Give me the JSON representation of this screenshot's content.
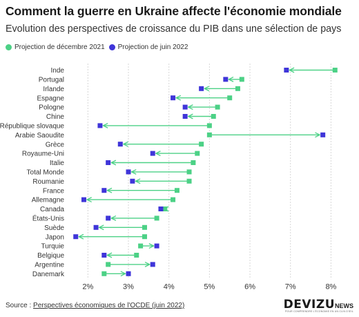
{
  "title": "Comment la guerre en Ukraine affecte l'économie mondiale",
  "subtitle": "Evolution des perspectives de croissance du PIB dans une sélection de pays",
  "legend": [
    {
      "label": "Projection de décembre 2021",
      "color": "#4cd186"
    },
    {
      "label": "Projection de juin 2022",
      "color": "#3f35d9"
    }
  ],
  "source_prefix": "Source : ",
  "source_link": "Perspectives économiques de l'OCDE (juin 2022)",
  "logo": {
    "main": "DEVIZU",
    "suffix": "NEWS",
    "tagline": "POUR COMPRENDRE L'ÉCONOMIE EN UN CLIN D'ŒIL"
  },
  "colors": {
    "dec": "#4cd186",
    "jun": "#3f35d9",
    "grid": "#d6d6d6",
    "arrow": "#4cd186"
  },
  "chart_data": {
    "type": "dumbbell",
    "xlim": [
      1.5,
      8.3
    ],
    "x_ticks": [
      2,
      3,
      4,
      5,
      6,
      7,
      8
    ],
    "x_tick_labels": [
      "2%",
      "3%",
      "4%",
      "5%",
      "6%",
      "7%",
      "8%"
    ],
    "grid": true,
    "series": [
      {
        "name": "Projection de décembre 2021",
        "values": [
          8.1,
          5.8,
          5.7,
          5.5,
          5.2,
          5.1,
          5.0,
          5.0,
          4.8,
          4.7,
          4.6,
          4.5,
          4.5,
          4.2,
          4.1,
          3.9,
          3.7,
          3.4,
          3.4,
          3.3,
          3.2,
          2.5,
          2.4
        ]
      },
      {
        "name": "Projection de juin 2022",
        "values": [
          6.9,
          5.4,
          4.8,
          4.1,
          4.4,
          4.4,
          2.3,
          7.8,
          2.8,
          3.6,
          2.5,
          3.0,
          3.1,
          2.4,
          1.9,
          3.8,
          2.5,
          2.2,
          1.7,
          3.7,
          2.4,
          3.6,
          3.0
        ]
      }
    ],
    "categories": [
      "Inde",
      "Portugal",
      "Irlande",
      "Espagne",
      "Pologne",
      "Chine",
      "République slovaque",
      "Arabie Saoudite",
      "Grèce",
      "Royaume-Uni",
      "Italie",
      "Total Monde",
      "Roumanie",
      "France",
      "Allemagne",
      "Canada",
      "États-Unis",
      "Suède",
      "Japon",
      "Turquie",
      "Belgique",
      "Argentine",
      "Danemark"
    ]
  }
}
